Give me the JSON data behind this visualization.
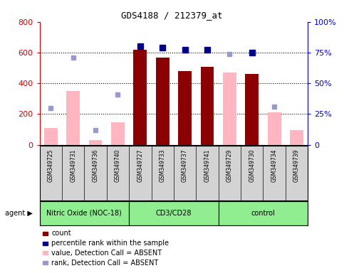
{
  "title": "GDS4188 / 212379_at",
  "samples": [
    "GSM349725",
    "GSM349731",
    "GSM349736",
    "GSM349740",
    "GSM349727",
    "GSM349733",
    "GSM349737",
    "GSM349741",
    "GSM349729",
    "GSM349730",
    "GSM349734",
    "GSM349739"
  ],
  "groups": [
    {
      "label": "Nitric Oxide (NOC-18)",
      "start": 0,
      "end": 4,
      "color": "#90ee90"
    },
    {
      "label": "CD3/CD28",
      "start": 4,
      "end": 8,
      "color": "#90ee90"
    },
    {
      "label": "control",
      "start": 8,
      "end": 12,
      "color": "#90ee90"
    }
  ],
  "count_values": [
    null,
    null,
    null,
    null,
    620,
    565,
    480,
    505,
    null,
    460,
    null,
    null
  ],
  "absent_value": [
    110,
    350,
    30,
    148,
    null,
    null,
    null,
    null,
    470,
    null,
    210,
    95
  ],
  "percentile_rank_pct": [
    null,
    null,
    null,
    null,
    80,
    79,
    77,
    77,
    null,
    75,
    null,
    null
  ],
  "absent_rank_pct": [
    30,
    71,
    12,
    41,
    null,
    null,
    null,
    null,
    74,
    null,
    31,
    null
  ],
  "ylim_left": [
    0,
    800
  ],
  "ylim_right": [
    0,
    100
  ],
  "yticks_left": [
    0,
    200,
    400,
    600,
    800
  ],
  "yticks_right": [
    0,
    25,
    50,
    75,
    100
  ],
  "bar_color_count": "#8B0000",
  "bar_color_absent": "#FFB6C1",
  "dot_color_percentile": "#00008B",
  "dot_color_absent_rank": "#9999CC",
  "ylabel_left_color": "#CC0000",
  "ylabel_right_color": "#0000CC",
  "background_color": "#ffffff",
  "label_area_color": "#d3d3d3",
  "agent_area_color": "#90ee90"
}
